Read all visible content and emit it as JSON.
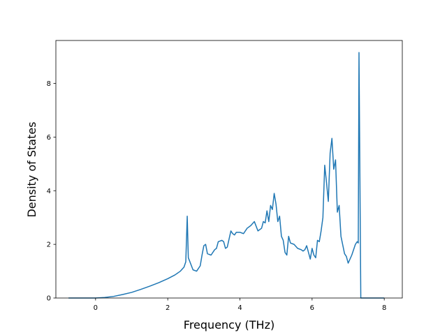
{
  "chart_data": {
    "type": "line",
    "title": "",
    "xlabel": "Frequency (THz)",
    "ylabel": "Density of States",
    "xlim": [
      -1.1,
      8.5
    ],
    "ylim": [
      0,
      9.6
    ],
    "x_ticks": [
      0,
      2,
      4,
      6,
      8
    ],
    "y_ticks": [
      0,
      2,
      4,
      6,
      8
    ],
    "x_tick_labels": [
      "0",
      "2",
      "4",
      "6",
      "8"
    ],
    "y_tick_labels": [
      "0",
      "2",
      "4",
      "6",
      "8"
    ],
    "grid": false,
    "colors": {
      "line": "#1f77b4",
      "axes": "#000000",
      "background": "#ffffff"
    },
    "series": [
      {
        "x": [
          -0.75,
          -0.5,
          0,
          0.25,
          0.5,
          0.75,
          1.0,
          1.25,
          1.5,
          1.75,
          2.0,
          2.2,
          2.35,
          2.45,
          2.5,
          2.54,
          2.57,
          2.6,
          2.7,
          2.8,
          2.9,
          2.95,
          3.0,
          3.05,
          3.1,
          3.2,
          3.3,
          3.35,
          3.4,
          3.5,
          3.55,
          3.6,
          3.65,
          3.7,
          3.75,
          3.8,
          3.85,
          3.9,
          3.95,
          4.0,
          4.1,
          4.2,
          4.3,
          4.4,
          4.5,
          4.6,
          4.65,
          4.7,
          4.75,
          4.8,
          4.85,
          4.9,
          4.95,
          5.0,
          5.05,
          5.1,
          5.15,
          5.2,
          5.25,
          5.3,
          5.35,
          5.4,
          5.5,
          5.6,
          5.7,
          5.75,
          5.8,
          5.85,
          5.9,
          5.95,
          6.0,
          6.05,
          6.1,
          6.15,
          6.2,
          6.25,
          6.3,
          6.35,
          6.4,
          6.45,
          6.5,
          6.55,
          6.6,
          6.65,
          6.7,
          6.75,
          6.8,
          6.9,
          6.95,
          7.0,
          7.1,
          7.2,
          7.25,
          7.28,
          7.3,
          7.35,
          7.5,
          8.0
        ],
        "y": [
          0,
          0,
          0,
          0.02,
          0.06,
          0.13,
          0.21,
          0.32,
          0.44,
          0.57,
          0.72,
          0.86,
          1.0,
          1.15,
          1.35,
          3.05,
          1.5,
          1.4,
          1.05,
          1.0,
          1.2,
          1.6,
          1.95,
          2.0,
          1.65,
          1.6,
          1.8,
          1.85,
          2.1,
          2.15,
          2.1,
          1.85,
          1.9,
          2.2,
          2.5,
          2.4,
          2.35,
          2.45,
          2.45,
          2.45,
          2.4,
          2.6,
          2.7,
          2.85,
          2.5,
          2.6,
          2.85,
          2.8,
          3.25,
          2.85,
          3.45,
          3.3,
          3.9,
          3.5,
          2.85,
          3.05,
          2.3,
          2.15,
          1.7,
          1.6,
          2.3,
          2.05,
          2.0,
          1.85,
          1.8,
          1.75,
          1.8,
          1.95,
          1.7,
          1.45,
          1.85,
          1.6,
          1.5,
          2.15,
          2.1,
          2.5,
          3.0,
          4.95,
          4.3,
          3.6,
          5.4,
          5.95,
          4.8,
          5.15,
          3.2,
          3.45,
          2.3,
          1.65,
          1.55,
          1.3,
          1.6,
          2.0,
          2.1,
          2.05,
          9.15,
          0,
          0,
          0
        ]
      }
    ]
  }
}
